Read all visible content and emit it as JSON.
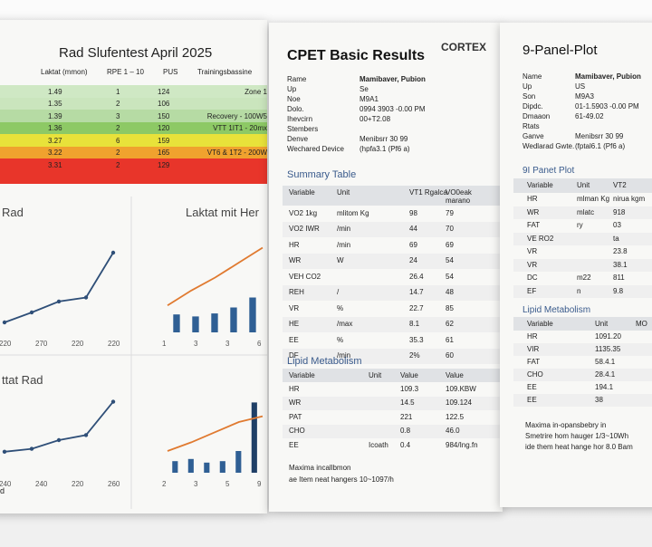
{
  "left_sheet": {
    "title": "Rad Slufentest April 2025",
    "headers": [
      "Laktat (mmon)",
      "RPE 1 – 10",
      "PUS",
      "Trainingsbassine"
    ],
    "rows": [
      {
        "laktat": "1.49",
        "rpe": "1",
        "puls": "124",
        "zone": "Zone 1"
      },
      {
        "laktat": "1.35",
        "rpe": "2",
        "puls": "106"
      },
      {
        "laktat": "1.39",
        "rpe": "3",
        "puls": "150",
        "zone": "Recovery - 100W5"
      },
      {
        "laktat": "1.36",
        "rpe": "2",
        "puls": "120",
        "zone": "VTT 1IT1 - 20mx"
      },
      {
        "laktat": "3.27",
        "rpe": "6",
        "puls": "159"
      },
      {
        "laktat": "3.22",
        "rpe": "2",
        "puls": "165",
        "zone": "VT6 & 1T2 - 200W"
      },
      {
        "laktat": "3.31",
        "rpe": "2",
        "puls": "129"
      }
    ],
    "charts": [
      {
        "title": "Rad",
        "x_labels": [
          "220",
          "270",
          "220",
          "220"
        ],
        "line": [
          1,
          2,
          3.1,
          3.5,
          8
        ]
      },
      {
        "title": "Laktat mit Her",
        "x_labels": [
          "1",
          "3",
          "3",
          "6"
        ],
        "bars": [
          1.8,
          1.6,
          1.9,
          2.5,
          3.5
        ],
        "line": [
          2.7,
          4.2,
          5.5,
          7,
          8.5
        ]
      },
      {
        "title": "ttat Rad",
        "x_labels": [
          "240",
          "240",
          "220",
          "260"
        ],
        "line": [
          2.9,
          3.3,
          4.5,
          5.2,
          9.8
        ]
      },
      {
        "x_labels": [
          "2",
          "3",
          "5",
          "9"
        ],
        "bars": [
          1.6,
          1.9,
          1.4,
          1.6,
          3,
          9.7
        ],
        "line": [
          3,
          4.2,
          5.6,
          7,
          7.8
        ]
      }
    ],
    "footer": "nd"
  },
  "middle_sheet": {
    "title": "CPET Basic Results",
    "logo": "CORTEX",
    "fields": [
      [
        "Rame",
        "Mamibaver, Pubion"
      ],
      [
        "Up",
        "Se"
      ],
      [
        "Noe",
        "M9A1"
      ],
      [
        "Dolo.",
        "0994 3903 -0.00 PM"
      ],
      [
        "Ihevcirn",
        "00+T2.08"
      ],
      [
        "Stembers"
      ],
      [
        "Denve",
        "Menibsrr 30 99"
      ],
      [
        "Wechared Device",
        "(hpfa3.1 (Pf6 a)"
      ]
    ],
    "summary_title": "Summary Table",
    "summary_headers": [
      "Variable",
      "Unit",
      "VT1 Rgalca",
      "VO0eak marano"
    ],
    "summary_rows": [
      [
        "VO2 1kg",
        "mlitom Kg",
        "98",
        "79"
      ],
      [
        "VO2 IWR",
        "/min",
        "44",
        "70"
      ],
      [
        "HR",
        "/min",
        "69",
        "69"
      ],
      [
        "WR",
        "W",
        "24",
        "54"
      ],
      [
        "VEH CO2",
        "",
        "26.4",
        "54"
      ],
      [
        "REH",
        "/",
        "14.7",
        "48"
      ],
      [
        "VR",
        "%",
        "22.7",
        "85"
      ],
      [
        "HE",
        "/max",
        "8.1",
        "62"
      ],
      [
        "EE",
        "%",
        "35.3",
        "61"
      ],
      [
        "DF",
        "/min",
        "2%",
        "60"
      ]
    ],
    "lipid_title": "Lipid Metabolism",
    "lipid_headers": [
      "Variable",
      "Unit",
      "Value",
      "Value"
    ],
    "lipid_rows": [
      [
        "HR",
        "",
        "109.3",
        "109.KBW"
      ],
      [
        "WR",
        "",
        "14.5",
        "109.124"
      ],
      [
        "PAT",
        "",
        "221",
        "122.5"
      ],
      [
        "CHO",
        "",
        "0.8",
        "46.0"
      ],
      [
        "EE",
        "Icoath",
        "0.4",
        "984/Ing.fn"
      ]
    ],
    "footer": [
      "Maxima incallbmon",
      "ae Item neat hangers 10~1097/h"
    ]
  },
  "right_sheet": {
    "title": "9-Panel-Plot",
    "fields": [
      [
        "Name",
        "Mamibaver, Pubion"
      ],
      [
        "Up",
        "US"
      ],
      [
        "Son",
        "M9A3"
      ],
      [
        "Dipdc.",
        "01-1.5903 -0.00 PM"
      ],
      [
        "Dmaaon",
        "61-49.02"
      ],
      [
        "Rtats"
      ],
      [
        "Ganve",
        "Menibsrr 30 99"
      ],
      [
        "Wedlarad Gwte.",
        "(fptal6.1 (Pf6 a)"
      ]
    ],
    "panel_title": "9I Panet Plot",
    "panel_headers": [
      "Variable",
      "Unit",
      "VT2"
    ],
    "panel_rows": [
      [
        "HR",
        "mlman Kg",
        "nirua kgm"
      ],
      [
        "WR",
        "mlatc",
        "918"
      ],
      [
        "FAT",
        "ry",
        "03"
      ],
      [
        "VE RO2",
        "",
        "ta"
      ],
      [
        "VR",
        "",
        "23.8"
      ],
      [
        "VR",
        "",
        "38.1"
      ],
      [
        "DC",
        "m22",
        "811"
      ],
      [
        "EF",
        "n",
        "9.8"
      ]
    ],
    "lipid_title": "Lipid Metabolism",
    "lipid_headers": [
      "Variable",
      "Unit",
      "MO"
    ],
    "lipid_rows": [
      [
        "HR",
        "1091.20"
      ],
      [
        "VIR",
        "1135.35"
      ],
      [
        "FAT",
        "58.4.1"
      ],
      [
        "CHO",
        "28.4.1"
      ],
      [
        "EE",
        "194.1"
      ],
      [
        "EE",
        "38"
      ]
    ],
    "footer": [
      "Maxima in-opansbebry in",
      "Smetrire hom hauger 1/3~10Wh",
      "ide them heat hange hor 8.0 Bam"
    ]
  }
}
